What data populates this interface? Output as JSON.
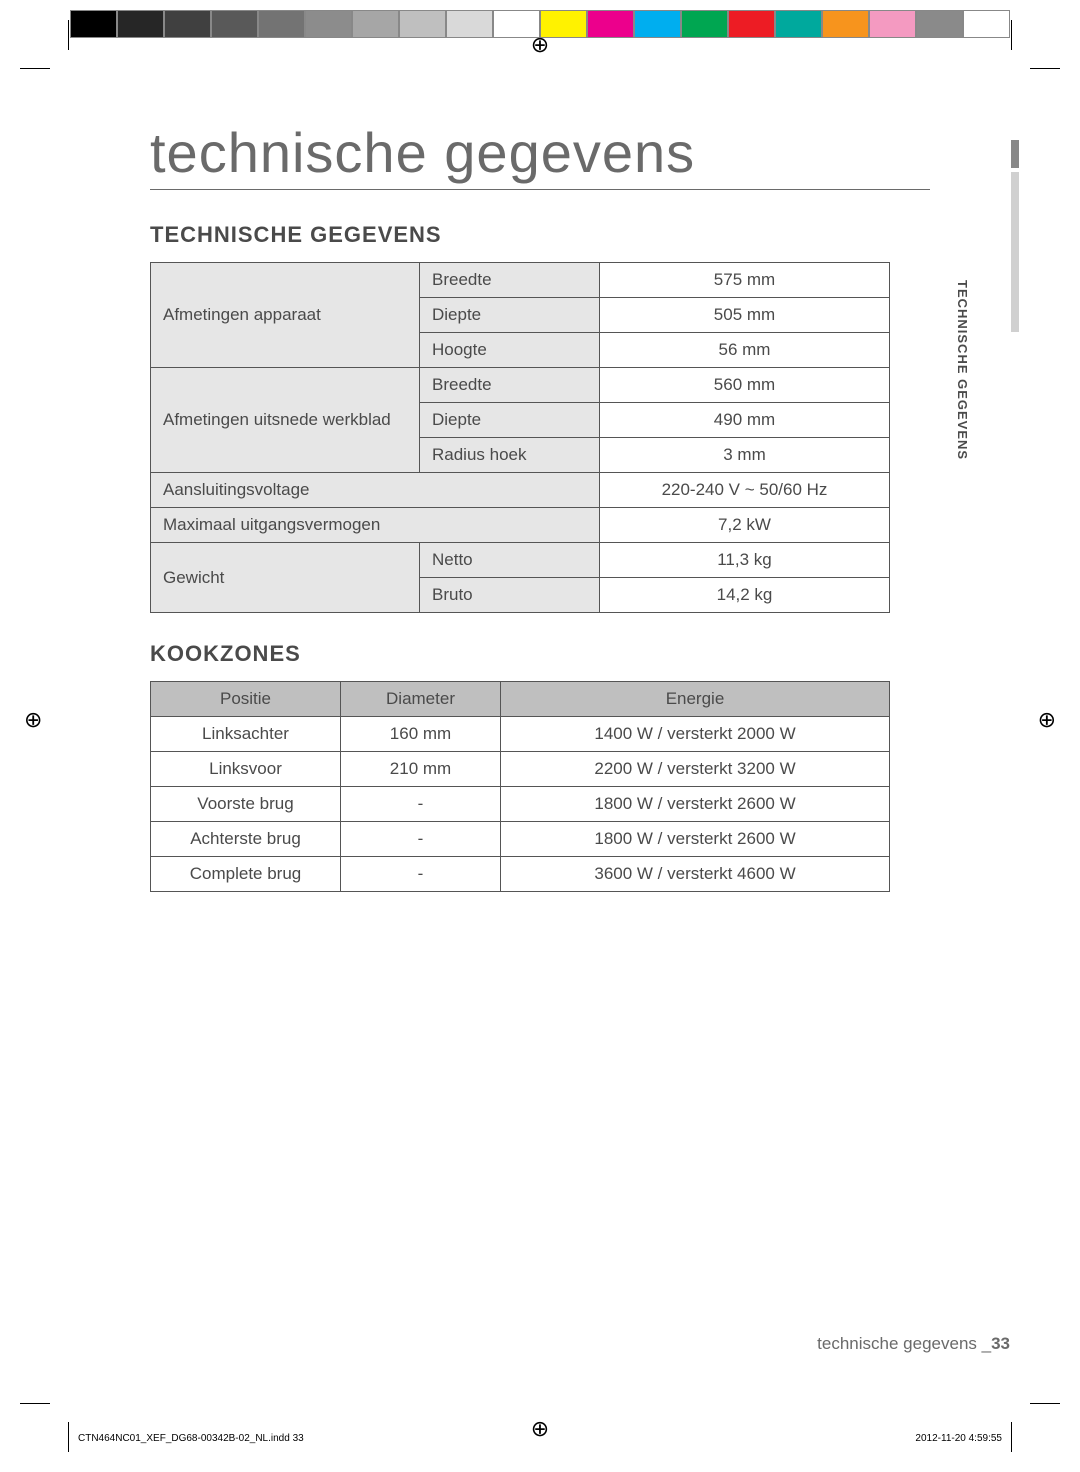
{
  "page_title": "technische gegevens",
  "section1_heading": "TECHNISCHE GEGEVENS",
  "section2_heading": "KOOKZONES",
  "side_tab_label": "TECHNISCHE GEGEVENS",
  "footer_label": "technische gegevens _",
  "footer_page": "33",
  "print_footer_left": "CTN464NC01_XEF_DG68-00342B-02_NL.indd   33",
  "print_footer_date": "2012-11-20",
  "print_footer_time": "   4:59:55",
  "color_bar": [
    "#000000",
    "#262626",
    "#404040",
    "#595959",
    "#737373",
    "#8c8c8c",
    "#a6a6a6",
    "#bfbfbf",
    "#d9d9d9",
    "#ffffff",
    "#fff200",
    "#ec008c",
    "#00aeef",
    "#00a651",
    "#ed1c24",
    "#00a99d",
    "#f7941d",
    "#f49ac1",
    "#8a8a8a",
    "#ffffff"
  ],
  "table1": {
    "rows": [
      {
        "label": "Afmetingen apparaat",
        "sub": "Breedte",
        "val": "575 mm",
        "rowspan": 3,
        "bold_label": true
      },
      {
        "sub": "Diepte",
        "val": "505 mm"
      },
      {
        "sub": "Hoogte",
        "val": "56 mm"
      },
      {
        "label": "Afmetingen uitsnede werkblad",
        "sub": "Breedte",
        "val": "560 mm",
        "rowspan": 3,
        "bold_label": false
      },
      {
        "sub": "Diepte",
        "val": "490 mm"
      },
      {
        "sub": "Radius hoek",
        "val": "3 mm"
      },
      {
        "label": "Aansluitingsvoltage",
        "val": "220-240 V ~ 50/60 Hz",
        "colspan": 2,
        "bold_label": false
      },
      {
        "label": "Maximaal uitgangsvermogen",
        "val": "7,2 kW",
        "colspan": 2,
        "bold_label": false
      },
      {
        "label": "Gewicht",
        "sub": "Netto",
        "val": "11,3 kg",
        "rowspan": 2,
        "bold_label": false
      },
      {
        "sub": "Bruto",
        "val": "14,2 kg"
      }
    ]
  },
  "table2": {
    "headers": [
      "Positie",
      "Diameter",
      "Energie"
    ],
    "rows": [
      [
        "Linksachter",
        "160 mm",
        "1400 W / versterkt 2000 W"
      ],
      [
        "Linksvoor",
        "210 mm",
        "2200 W / versterkt 3200 W"
      ],
      [
        "Voorste brug",
        "-",
        "1800 W / versterkt 2600 W"
      ],
      [
        "Achterste brug",
        "-",
        "1800 W / versterkt 2600 W"
      ],
      [
        "Complete brug",
        "-",
        "3600 W / versterkt 4600 W"
      ]
    ]
  }
}
